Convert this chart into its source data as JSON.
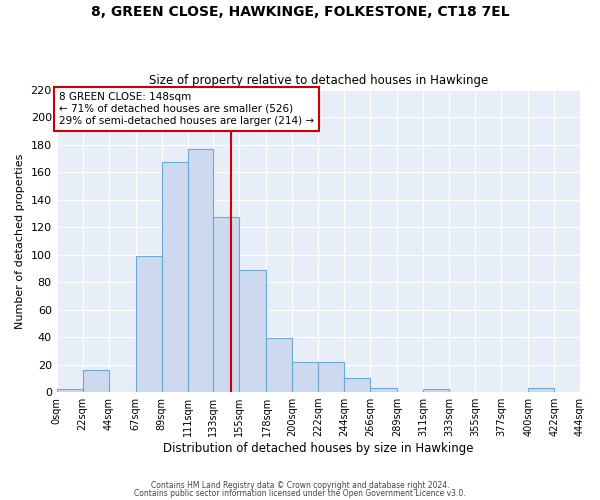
{
  "title": "8, GREEN CLOSE, HAWKINGE, FOLKESTONE, CT18 7EL",
  "subtitle": "Size of property relative to detached houses in Hawkinge",
  "xlabel": "Distribution of detached houses by size in Hawkinge",
  "ylabel": "Number of detached properties",
  "bin_edges": [
    0,
    22,
    44,
    67,
    89,
    111,
    133,
    155,
    178,
    200,
    222,
    244,
    266,
    289,
    311,
    333,
    355,
    377,
    400,
    422,
    444
  ],
  "bin_counts": [
    2,
    16,
    0,
    99,
    167,
    177,
    127,
    89,
    39,
    22,
    22,
    10,
    3,
    0,
    2,
    0,
    0,
    0,
    3,
    0
  ],
  "tick_labels": [
    "0sqm",
    "22sqm",
    "44sqm",
    "67sqm",
    "89sqm",
    "111sqm",
    "133sqm",
    "155sqm",
    "178sqm",
    "200sqm",
    "222sqm",
    "244sqm",
    "266sqm",
    "289sqm",
    "311sqm",
    "333sqm",
    "355sqm",
    "377sqm",
    "400sqm",
    "422sqm",
    "444sqm"
  ],
  "bar_color": "#ccd9ee",
  "bar_edge_color": "#6aaad4",
  "vline_x": 148,
  "vline_color": "#cc0000",
  "annotation_line1": "8 GREEN CLOSE: 148sqm",
  "annotation_line2": "← 71% of detached houses are smaller (526)",
  "annotation_line3": "29% of semi-detached houses are larger (214) →",
  "annotation_box_color": "#ffffff",
  "annotation_box_edge": "#cc0000",
  "ylim": [
    0,
    220
  ],
  "yticks": [
    0,
    20,
    40,
    60,
    80,
    100,
    120,
    140,
    160,
    180,
    200,
    220
  ],
  "plot_bg_color": "#e8eef8",
  "fig_bg_color": "#ffffff",
  "grid_color": "#ffffff",
  "footer_line1": "Contains HM Land Registry data © Crown copyright and database right 2024.",
  "footer_line2": "Contains public sector information licensed under the Open Government Licence v3.0."
}
